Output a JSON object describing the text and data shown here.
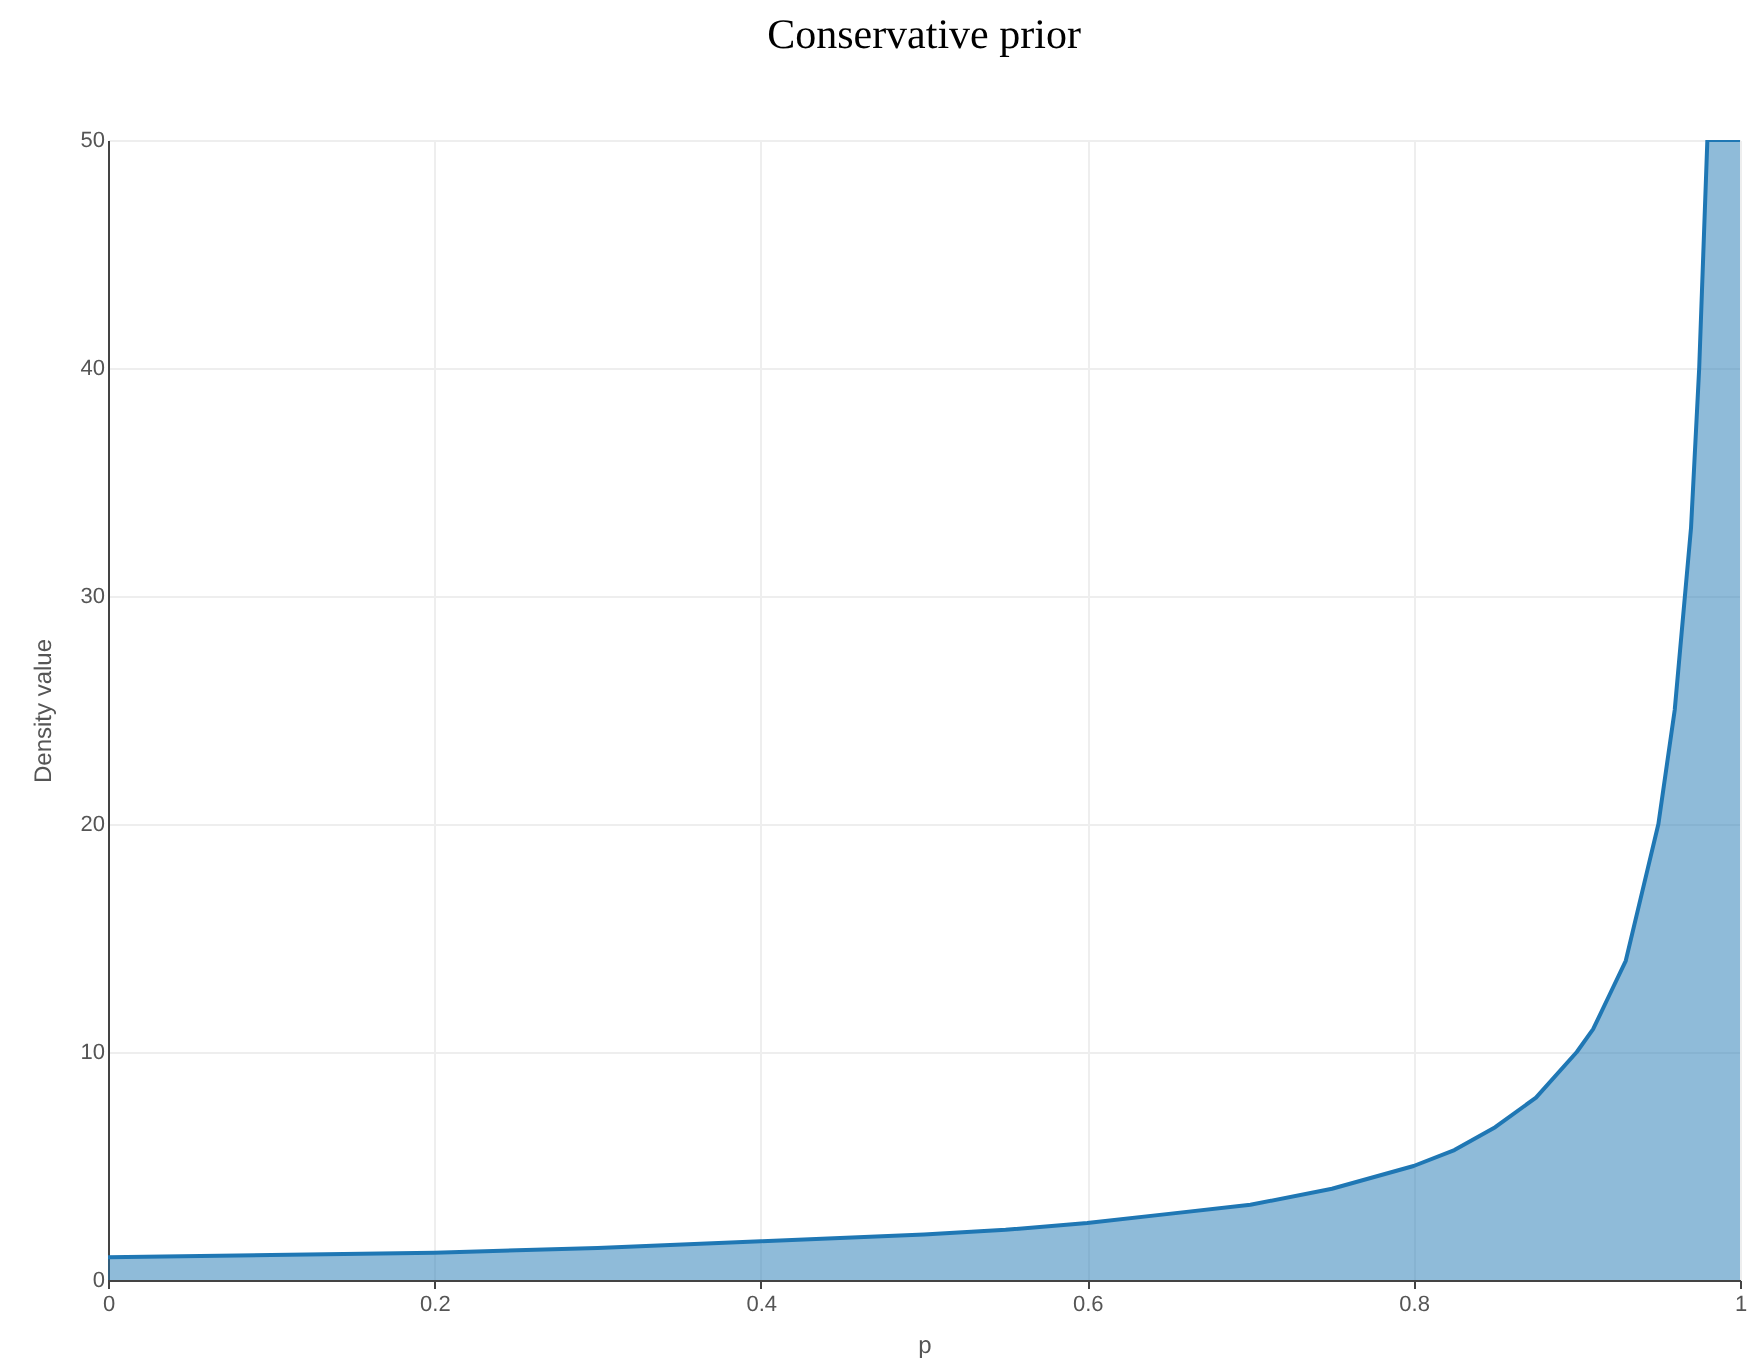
{
  "chart_data": {
    "type": "area",
    "title": "Conservative prior",
    "xlabel": "p",
    "ylabel": "Density value",
    "x": [
      0,
      0.1,
      0.2,
      0.3,
      0.4,
      0.5,
      0.55,
      0.6,
      0.65,
      0.7,
      0.75,
      0.8,
      0.825,
      0.85,
      0.875,
      0.9,
      0.91,
      0.92,
      0.93,
      0.94,
      0.95,
      0.96,
      0.97,
      0.975,
      0.98,
      1
    ],
    "series": [
      {
        "color": "#1f77b4",
        "values": [
          1,
          1.1,
          1.2,
          1.4,
          1.7,
          2,
          2.2,
          2.5,
          2.9,
          3.3,
          4,
          5,
          5.7,
          6.7,
          8,
          10,
          11,
          12.5,
          14,
          17,
          20,
          25,
          33,
          40,
          50,
          50
        ]
      }
    ],
    "xlim": [
      0,
      1
    ],
    "ylim": [
      0,
      50
    ],
    "xticks": [
      0,
      0.2,
      0.4,
      0.6,
      0.8,
      1
    ],
    "yticks": [
      0,
      10,
      20,
      30,
      40,
      50
    ],
    "grid": true
  }
}
